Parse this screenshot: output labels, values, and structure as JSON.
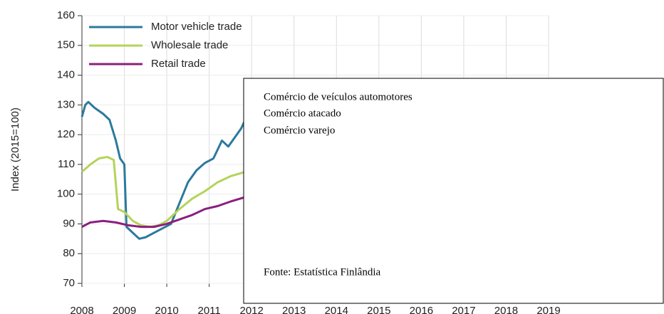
{
  "chart_data": {
    "type": "line",
    "ylabel": "Index (2015=100)",
    "xlim": [
      2008,
      2019
    ],
    "xticks": [
      2008,
      2009,
      2010,
      2011,
      2012,
      2013,
      2014,
      2015,
      2016,
      2017,
      2018,
      2019
    ],
    "ylim": [
      70,
      160
    ],
    "yticks": [
      70,
      80,
      90,
      100,
      110,
      120,
      130,
      140,
      150,
      160
    ],
    "grid": true,
    "legend": "upper left",
    "series": [
      {
        "name": "Motor vehicle trade",
        "color": "#2b7a9c",
        "x": [
          2008.0,
          2008.08,
          2008.15,
          2008.3,
          2008.5,
          2008.65,
          2008.8,
          2008.9,
          2009.0,
          2009.05,
          2009.2,
          2009.35,
          2009.5,
          2009.7,
          2009.9,
          2010.1,
          2010.3,
          2010.5,
          2010.7,
          2010.9,
          2011.1,
          2011.3,
          2011.45,
          2011.6,
          2011.75,
          2011.85
        ],
        "values": [
          126,
          130,
          131,
          129,
          127,
          125,
          118,
          112,
          110,
          89,
          87,
          85,
          85.5,
          87,
          88.5,
          90,
          97,
          104,
          108,
          110.5,
          112,
          118,
          116,
          119,
          122,
          125
        ]
      },
      {
        "name": "Wholesale trade",
        "color": "#b5d35a",
        "x": [
          2008.0,
          2008.2,
          2008.4,
          2008.6,
          2008.75,
          2008.85,
          2009.0,
          2009.2,
          2009.4,
          2009.6,
          2009.8,
          2010.0,
          2010.3,
          2010.6,
          2010.9,
          2011.2,
          2011.5,
          2011.85
        ],
        "values": [
          107.5,
          110,
          112,
          112.5,
          111.5,
          95,
          94,
          91,
          89.5,
          89,
          89.5,
          91,
          95,
          98.5,
          101,
          104,
          106,
          107.5
        ]
      },
      {
        "name": "Retail trade",
        "color": "#8b1f7e",
        "x": [
          2008.0,
          2008.2,
          2008.5,
          2008.8,
          2009.1,
          2009.4,
          2009.7,
          2010.0,
          2010.3,
          2010.6,
          2010.9,
          2011.2,
          2011.5,
          2011.85
        ],
        "values": [
          89,
          90.5,
          91,
          90.5,
          89.5,
          89,
          89,
          90,
          91.5,
          93,
          95,
          96,
          97.5,
          99
        ]
      }
    ],
    "annotations": [
      "Comércio de veículos automotores",
      "Comércio atacado",
      "Comércio varejo"
    ],
    "source": "Fonte: Estatística Finlândia"
  }
}
